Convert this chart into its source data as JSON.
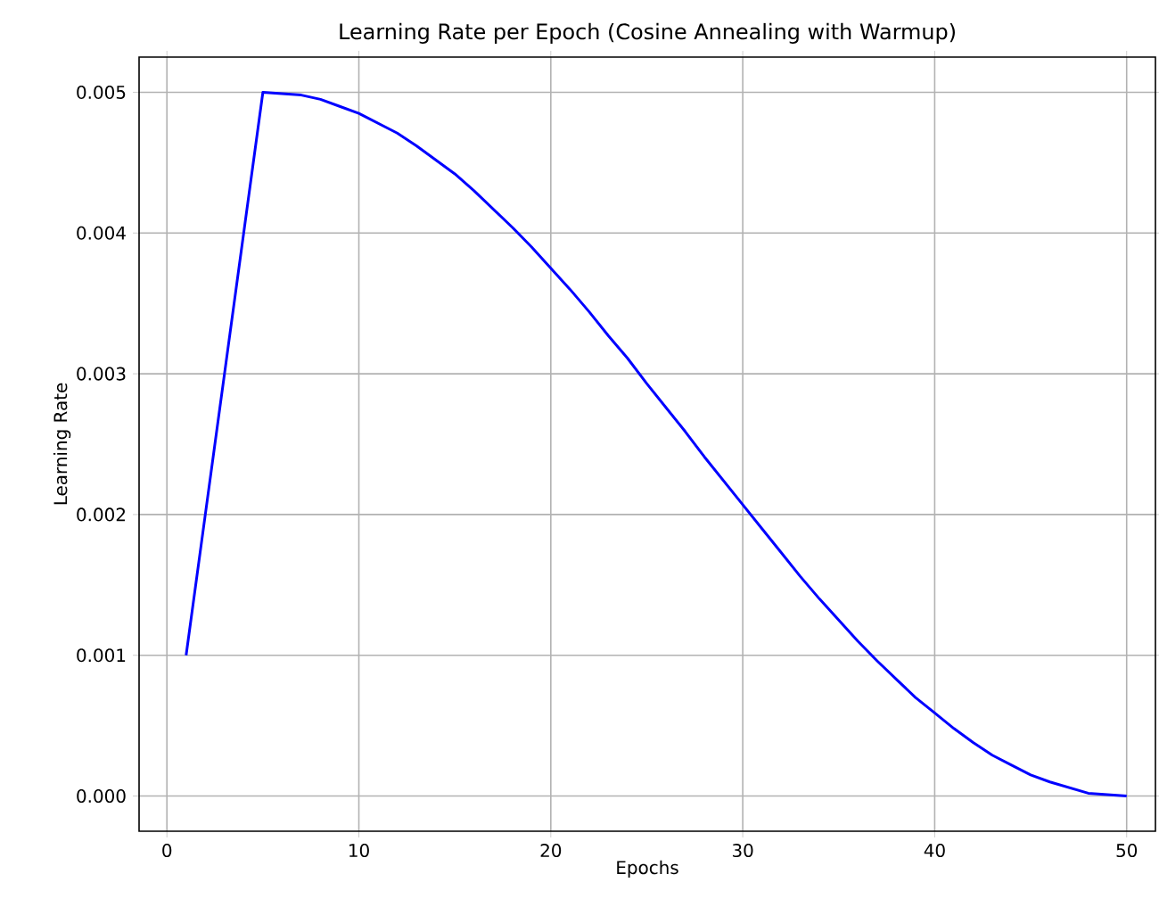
{
  "chart_data": {
    "type": "line",
    "title": "Learning Rate per Epoch (Cosine Annealing with Warmup)",
    "xlabel": "Epochs",
    "ylabel": "Learning Rate",
    "x": [
      1,
      2,
      3,
      4,
      5,
      6,
      7,
      8,
      9,
      10,
      11,
      12,
      13,
      14,
      15,
      16,
      17,
      18,
      19,
      20,
      21,
      22,
      23,
      24,
      25,
      26,
      27,
      28,
      29,
      30,
      31,
      32,
      33,
      34,
      35,
      36,
      37,
      38,
      39,
      40,
      41,
      42,
      43,
      44,
      45,
      46,
      47,
      48,
      49,
      50
    ],
    "series": [
      {
        "color": "#0000ff",
        "values": [
          0.001,
          0.002,
          0.003,
          0.004,
          0.005,
          0.00499,
          0.00498,
          0.00495,
          0.0049,
          0.00485,
          0.00478,
          0.00471,
          0.00462,
          0.00452,
          0.00442,
          0.0043,
          0.00417,
          0.00404,
          0.0039,
          0.00375,
          0.0036,
          0.00344,
          0.00327,
          0.00311,
          0.00293,
          0.00276,
          0.00259,
          0.00241,
          0.00224,
          0.00207,
          0.0019,
          0.00173,
          0.00156,
          0.0014,
          0.00125,
          0.0011,
          0.00096,
          0.00083,
          0.0007,
          0.00059,
          0.00048,
          0.00038,
          0.00029,
          0.00022,
          0.00015,
          0.0001,
          6e-05,
          2e-05,
          1e-05,
          0.0
        ]
      }
    ],
    "xlim": [
      -1.45,
      51.5
    ],
    "ylim": [
      -0.00025,
      0.00525
    ],
    "xticks": [
      0,
      10,
      20,
      30,
      40,
      50
    ],
    "yticks": [
      {
        "value": 0,
        "label": "0.000"
      },
      {
        "value": 0.001,
        "label": "0.001"
      },
      {
        "value": 0.002,
        "label": "0.002"
      },
      {
        "value": 0.003,
        "label": "0.003"
      },
      {
        "value": 0.004,
        "label": "0.004"
      },
      {
        "value": 0.005,
        "label": "0.005"
      }
    ],
    "grid": true,
    "marker": "none",
    "line_style": "solid"
  }
}
